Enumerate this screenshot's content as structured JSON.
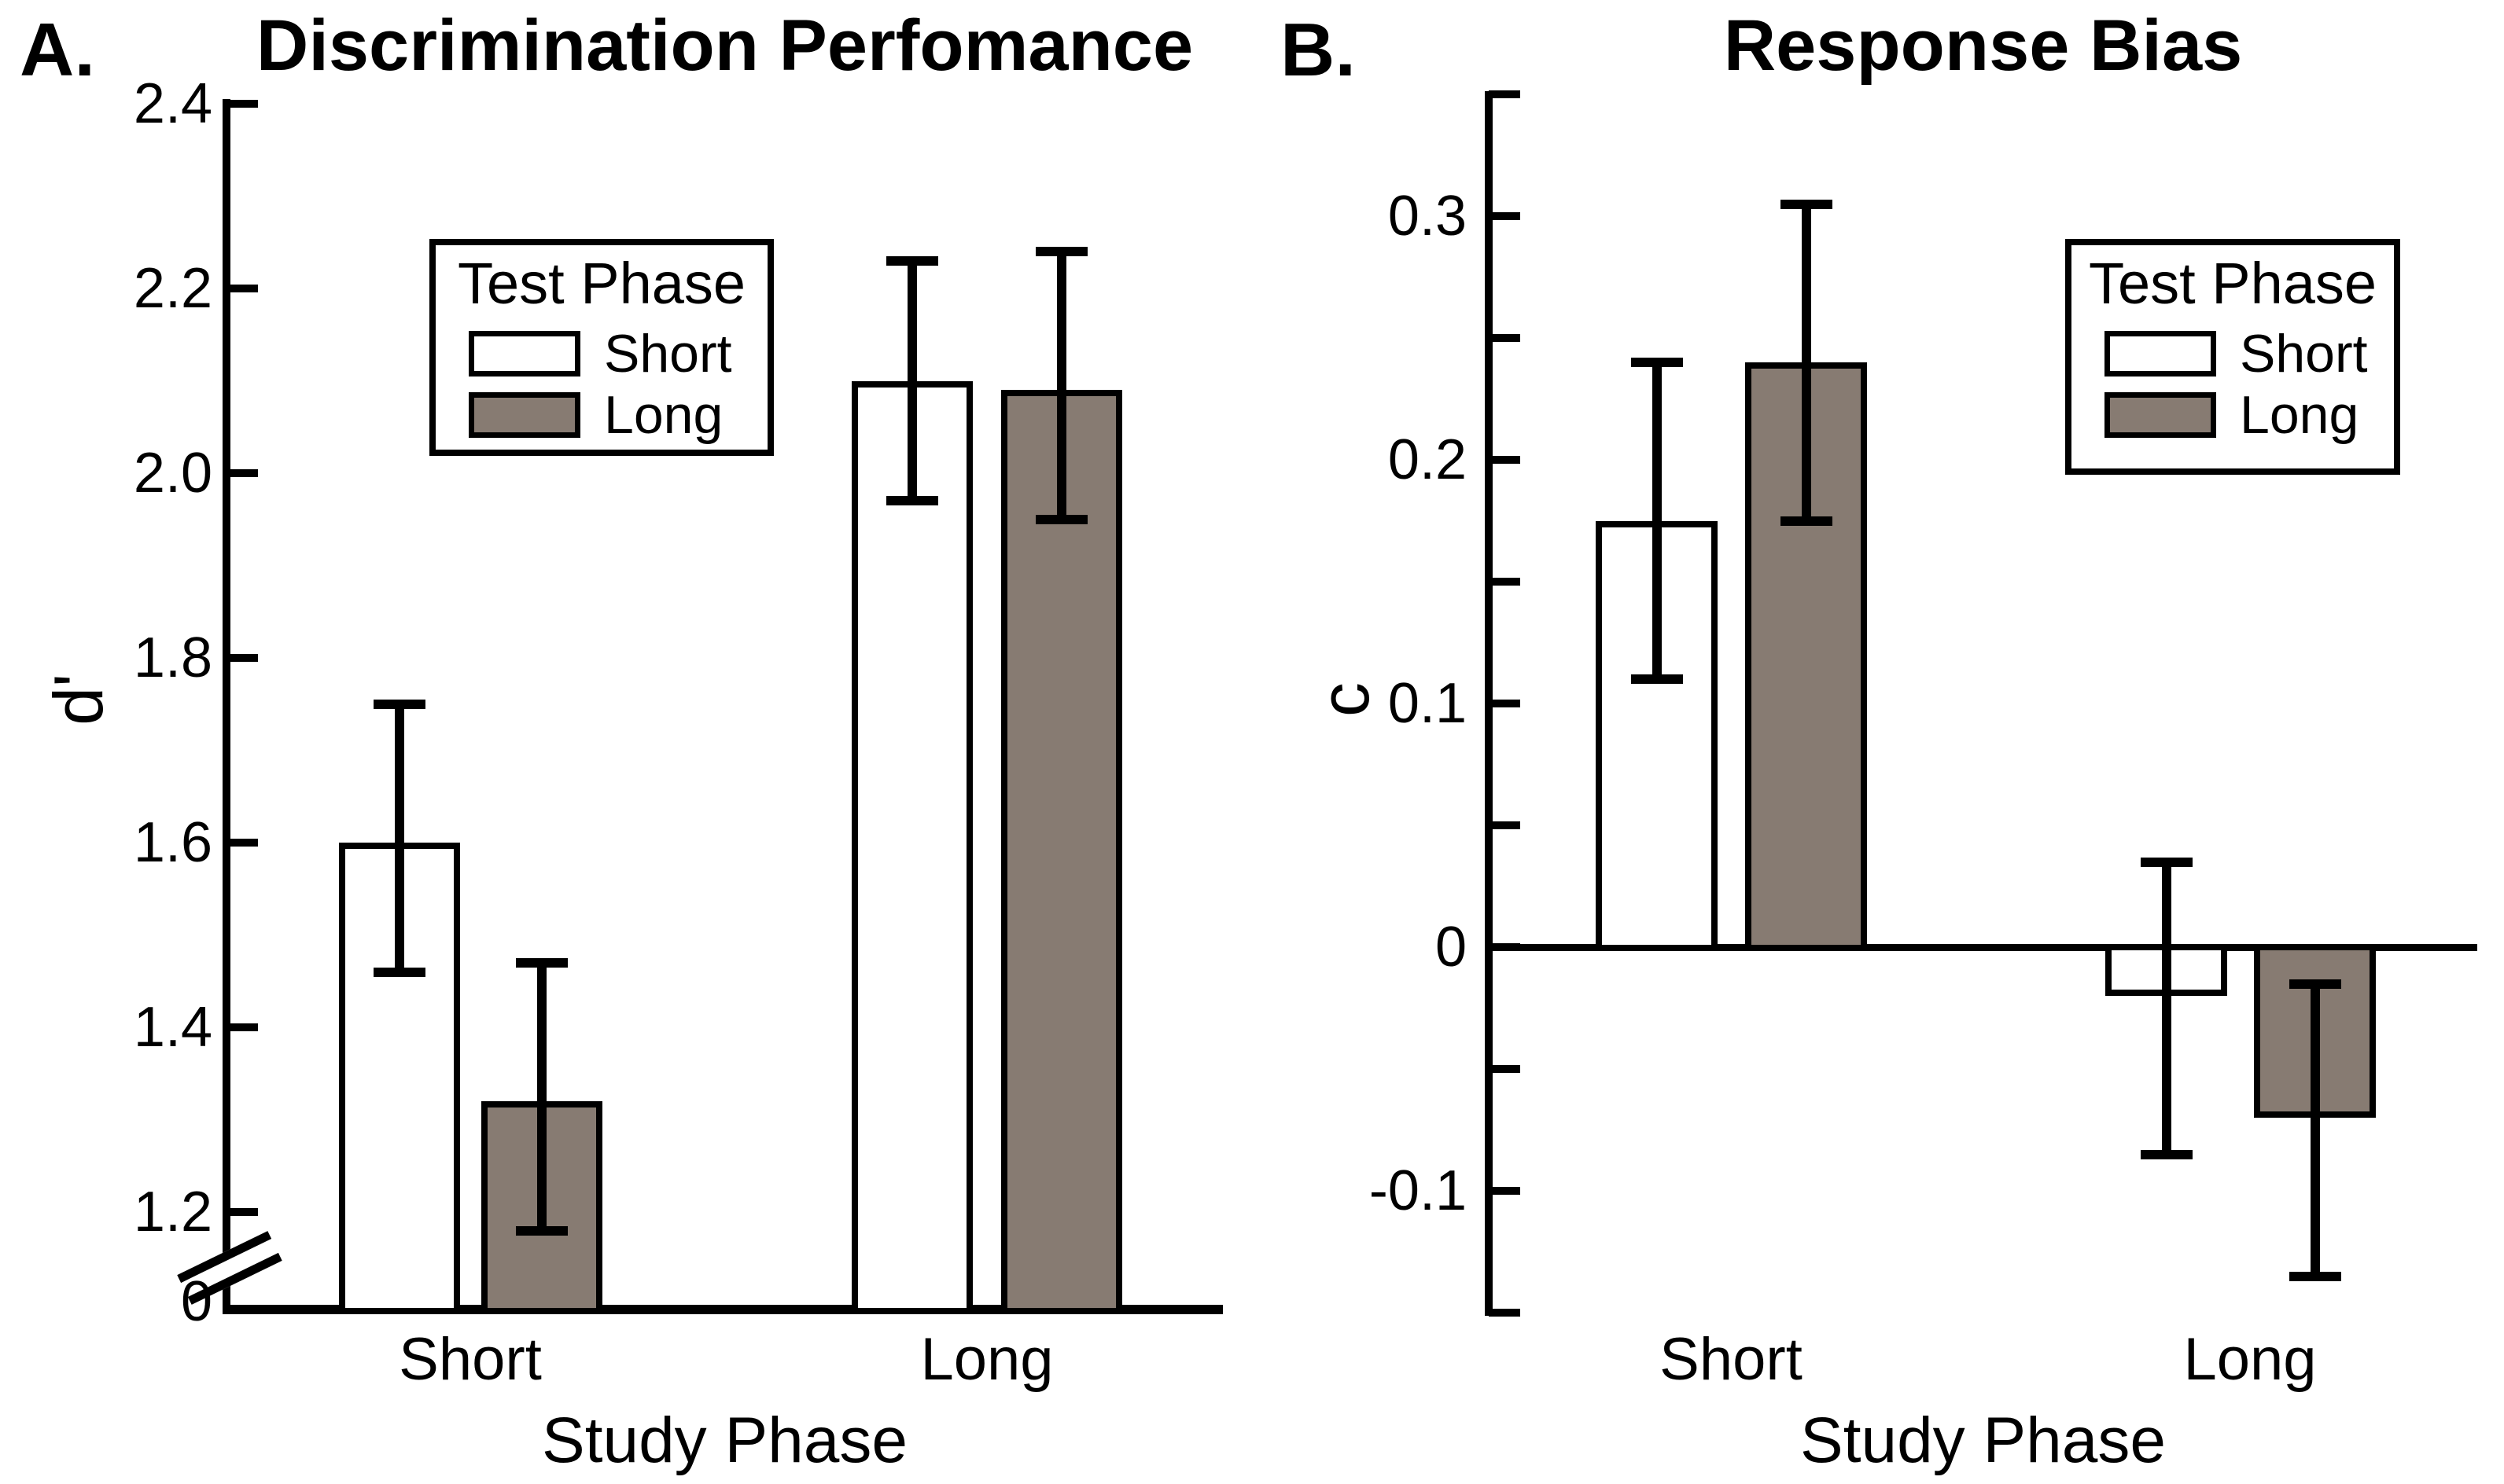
{
  "figure": {
    "background": "#ffffff",
    "ink_color": "#000000",
    "bar_fill_short_test": "#ffffff",
    "bar_fill_long_test": "#877b72"
  },
  "chart_data": [
    {
      "type": "bar",
      "panel_label": "A.",
      "title": "Discrimination Perfomance",
      "xlabel": "Study Phase",
      "ylabel": "d'",
      "categories": [
        "Short",
        "Long"
      ],
      "series": [
        {
          "name": "Short",
          "fill": "#ffffff",
          "values": [
            1.6,
            2.1
          ],
          "err_low": [
            1.46,
            1.97
          ],
          "err_high": [
            1.75,
            2.23
          ]
        },
        {
          "name": "Long",
          "fill": "#877b72",
          "values": [
            1.32,
            2.09
          ],
          "err_low": [
            1.18,
            1.95
          ],
          "err_high": [
            1.47,
            2.24
          ]
        }
      ],
      "legend": {
        "title": "Test Phase",
        "items": [
          "Short",
          "Long"
        ],
        "position": "upper-left"
      },
      "y_axis": {
        "range_top": 2.4,
        "range_bottom_visible": 1.2,
        "axis_break": true,
        "break_zero_label": "0",
        "ticks": [
          2.4,
          2.2,
          2.0,
          1.8,
          1.6,
          1.4,
          1.2
        ],
        "tick_labels": [
          "2.4",
          "2.2",
          "2.0",
          "1.8",
          "1.6",
          "1.4",
          "1.2"
        ]
      },
      "grid": false,
      "error_bars": "plus-minus, capped"
    },
    {
      "type": "bar",
      "panel_label": "B.",
      "title": "Response Bias",
      "xlabel": "Study Phase",
      "ylabel": "c",
      "categories": [
        "Short",
        "Long"
      ],
      "series": [
        {
          "name": "Short",
          "fill": "#ffffff",
          "values": [
            0.175,
            -0.02
          ],
          "err_low": [
            0.11,
            -0.085
          ],
          "err_high": [
            0.24,
            0.035
          ]
        },
        {
          "name": "Long",
          "fill": "#877b72",
          "values": [
            0.24,
            -0.07
          ],
          "err_low": [
            0.175,
            -0.135
          ],
          "err_high": [
            0.305,
            -0.015
          ]
        }
      ],
      "legend": {
        "title": "Test Phase",
        "items": [
          "Short",
          "Long"
        ],
        "position": "upper-right"
      },
      "y_axis": {
        "range_top": 0.35,
        "range_bottom": -0.15,
        "zero_line": true,
        "ticks": [
          0.35,
          0.3,
          0.25,
          0.2,
          0.15,
          0.1,
          0.05,
          0,
          -0.05,
          -0.1,
          -0.15
        ],
        "tick_labels": [
          null,
          "0.3",
          null,
          "0.2",
          null,
          "0.1",
          null,
          "0",
          null,
          "-0.1",
          null
        ]
      },
      "grid": false,
      "error_bars": "plus-minus, capped"
    }
  ]
}
